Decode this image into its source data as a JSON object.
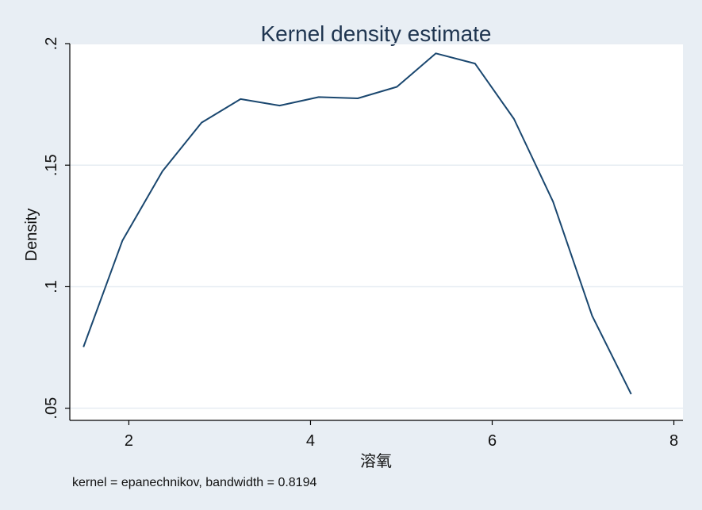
{
  "chart_data": {
    "type": "line",
    "title": "Kernel density estimate",
    "xlabel": "溶氧",
    "ylabel": "Density",
    "note": "kernel = epanechnikov, bandwidth = 0.8194",
    "xlim": [
      1.35,
      8.1
    ],
    "ylim": [
      0.045,
      0.2
    ],
    "xticks": [
      {
        "value": 2,
        "label": "2"
      },
      {
        "value": 4,
        "label": "4"
      },
      {
        "value": 6,
        "label": "6"
      },
      {
        "value": 8,
        "label": "8"
      }
    ],
    "yticks": [
      {
        "value": 0.05,
        "label": ".05"
      },
      {
        "value": 0.1,
        "label": ".1"
      },
      {
        "value": 0.15,
        "label": ".15"
      },
      {
        "value": 0.2,
        "label": ".2"
      }
    ],
    "grid": true,
    "series": [
      {
        "color": "#1a476f",
        "x": [
          1.5,
          1.93,
          2.37,
          2.8,
          3.23,
          3.66,
          4.09,
          4.52,
          4.95,
          5.38,
          5.81,
          6.24,
          6.67,
          7.1,
          7.53
        ],
        "y": [
          0.0752,
          0.119,
          0.1475,
          0.1675,
          0.1772,
          0.1745,
          0.178,
          0.1775,
          0.1822,
          0.196,
          0.1918,
          0.169,
          0.135,
          0.088,
          0.0558
        ]
      }
    ]
  }
}
